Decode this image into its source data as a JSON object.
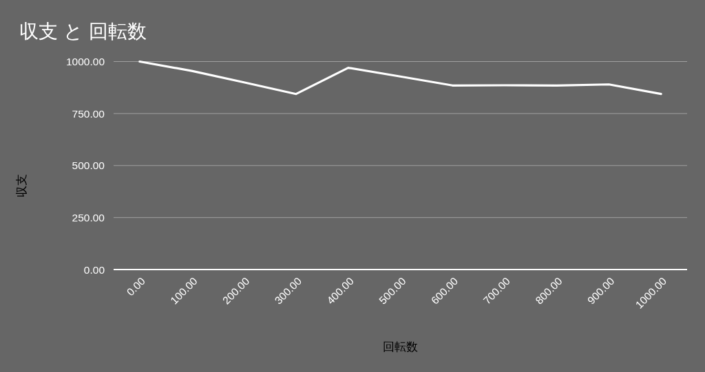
{
  "chart_data": {
    "type": "line",
    "title": "収支 と 回転数",
    "xlabel": "回転数",
    "ylabel": "収支",
    "categories": [
      "0.00",
      "100.00",
      "200.00",
      "300.00",
      "400.00",
      "500.00",
      "600.00",
      "700.00",
      "800.00",
      "900.00",
      "1000.00"
    ],
    "series": [
      {
        "color": "#ffffff",
        "values": [
          1000,
          955,
          900,
          844,
          970,
          928,
          885,
          886,
          885,
          890,
          844
        ]
      }
    ],
    "ylim": [
      0,
      1000
    ],
    "yticks": [
      {
        "value": 0,
        "label": "0.00"
      },
      {
        "value": 250,
        "label": "250.00"
      },
      {
        "value": 500,
        "label": "500.00"
      },
      {
        "value": 750,
        "label": "750.00"
      },
      {
        "value": 1000,
        "label": "1000.00"
      }
    ],
    "grid": "y"
  }
}
